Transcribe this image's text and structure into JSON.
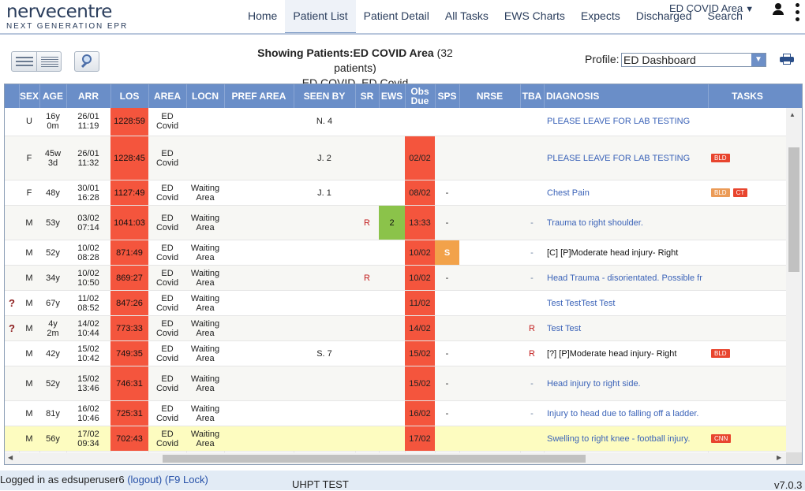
{
  "brand": {
    "name": "nervecentre",
    "tagline": "NEXT GENERATION EPR"
  },
  "nav": {
    "items": [
      "Home",
      "Patient List",
      "Patient Detail",
      "All Tasks",
      "EWS Charts",
      "Expects",
      "Discharged",
      "Search"
    ],
    "active": "Patient List",
    "area_selector": "ED COVID Area"
  },
  "icons": [
    "user-icon",
    "kebab-menu-icon",
    "list-view-icon",
    "compact-view-icon",
    "magnifier-icon",
    "printer-icon",
    "question-icon"
  ],
  "toolbar": {
    "showing_label": "Showing Patients:",
    "showing_area": "ED COVID Area",
    "patient_count": "(32 patients)",
    "subtitle": "ED COVID, ED Covid",
    "profile_label": "Profile:",
    "profile_value": "ED Dashboard"
  },
  "colors": {
    "header": "#6a8ec8",
    "los": "#f4553d",
    "obs_due": "#f4553d",
    "ews_green": "#8bc34a",
    "sps_orange": "#f2a24a",
    "highlight_row": "#fdfcc0",
    "badge_bld": "#e8452e",
    "badge_ct": "#e8452e",
    "badge_bld_light": "#eb9b57"
  },
  "grid": {
    "columns": [
      "SEX",
      "AGE",
      "ARR",
      "LOS",
      "AREA",
      "LOCN",
      "PREF AREA",
      "SEEN BY",
      "SR",
      "EWS",
      "Obs Due",
      "SPS",
      "NRSE",
      "TBA",
      "DIAGNOSIS",
      "TASKS"
    ],
    "rows": [
      {
        "flag": "",
        "sex": "U",
        "age": "16y\n0m",
        "arr": "26/01\n11:19",
        "los": "1228:59",
        "area": "ED\nCovid",
        "locn": "",
        "seen": "N. 4",
        "sr": "",
        "ews": "",
        "obs": "",
        "sps": "",
        "tba": "",
        "diag": "PLEASE LEAVE FOR LAB TESTING",
        "diag_style": "link",
        "tasks": []
      },
      {
        "flag": "",
        "sex": "F",
        "age": "45w\n3d",
        "arr": "26/01\n11:32",
        "los": "1228:45",
        "area": "ED\nCovid",
        "locn": "",
        "seen": "J. 2",
        "sr": "",
        "ews": "",
        "obs": "02/02",
        "sps": "",
        "tba": "",
        "diag": "PLEASE LEAVE FOR LAB TESTING",
        "diag_style": "link",
        "tasks": [
          {
            "label": "BLD",
            "tone": "red"
          }
        ]
      },
      {
        "flag": "",
        "sex": "F",
        "age": "48y",
        "arr": "30/01\n16:28",
        "los": "1127:49",
        "area": "ED\nCovid",
        "locn": "Waiting\nArea",
        "seen": "J. 1",
        "sr": "",
        "ews": "",
        "obs": "08/02",
        "sps": "-",
        "tba": "",
        "diag": "Chest Pain",
        "diag_style": "link",
        "tasks": [
          {
            "label": "BLD",
            "tone": "light"
          },
          {
            "label": "CT",
            "tone": "red"
          }
        ]
      },
      {
        "flag": "",
        "sex": "M",
        "age": "53y",
        "arr": "03/02\n07:14",
        "los": "1041:03",
        "area": "ED\nCovid",
        "locn": "Waiting\nArea",
        "seen": "",
        "sr": "R",
        "ews": "2",
        "obs": "13:33",
        "sps": "-",
        "tba": "-",
        "diag": "Trauma to right shoulder.",
        "diag_style": "link",
        "tasks": []
      },
      {
        "flag": "",
        "sex": "M",
        "age": "52y",
        "arr": "10/02\n08:28",
        "los": "871:49",
        "area": "ED\nCovid",
        "locn": "Waiting\nArea",
        "seen": "",
        "sr": "",
        "ews": "",
        "obs": "10/02",
        "sps": "S",
        "tba": "-",
        "diag": "[C] [P]Moderate head injury- Right",
        "diag_style": "plain",
        "tasks": []
      },
      {
        "flag": "",
        "sex": "M",
        "age": "34y",
        "arr": "10/02\n10:50",
        "los": "869:27",
        "area": "ED\nCovid",
        "locn": "Waiting\nArea",
        "seen": "",
        "sr": "R",
        "ews": "",
        "obs": "10/02",
        "sps": "-",
        "tba": "-",
        "diag": "Head Trauma - disorientated. Possible fr",
        "diag_style": "link",
        "tasks": []
      },
      {
        "flag": "?",
        "sex": "M",
        "age": "67y",
        "arr": "11/02\n08:52",
        "los": "847:26",
        "area": "ED\nCovid",
        "locn": "Waiting\nArea",
        "seen": "",
        "sr": "",
        "ews": "",
        "obs": "11/02",
        "sps": "",
        "tba": "",
        "diag": "Test TestTest Test",
        "diag_style": "link",
        "tasks": []
      },
      {
        "flag": "?",
        "sex": "M",
        "age": "4y\n2m",
        "arr": "14/02\n10:44",
        "los": "773:33",
        "area": "ED\nCovid",
        "locn": "Waiting\nArea",
        "seen": "",
        "sr": "",
        "ews": "",
        "obs": "14/02",
        "sps": "",
        "tba": "R",
        "diag": "Test Test",
        "diag_style": "link",
        "tasks": []
      },
      {
        "flag": "",
        "sex": "M",
        "age": "42y",
        "arr": "15/02\n10:42",
        "los": "749:35",
        "area": "ED\nCovid",
        "locn": "Waiting\nArea",
        "seen": "S. 7",
        "sr": "",
        "ews": "",
        "obs": "15/02",
        "sps": "-",
        "tba": "R",
        "diag": "[?] [P]Moderate head injury- Right",
        "diag_style": "plain",
        "tasks": [
          {
            "label": "BLD",
            "tone": "red"
          }
        ]
      },
      {
        "flag": "",
        "sex": "M",
        "age": "52y",
        "arr": "15/02\n13:46",
        "los": "746:31",
        "area": "ED\nCovid",
        "locn": "Waiting\nArea",
        "seen": "",
        "sr": "",
        "ews": "",
        "obs": "15/02",
        "sps": "-",
        "tba": "-",
        "diag": "Head injury to right side.",
        "diag_style": "link",
        "tasks": []
      },
      {
        "flag": "",
        "sex": "M",
        "age": "81y",
        "arr": "16/02\n10:46",
        "los": "725:31",
        "area": "ED\nCovid",
        "locn": "Waiting\nArea",
        "seen": "",
        "sr": "",
        "ews": "",
        "obs": "16/02",
        "sps": "-",
        "tba": "-",
        "diag": "Injury to head due to falling off a ladder.",
        "diag_style": "link",
        "tasks": []
      },
      {
        "flag": "",
        "sex": "M",
        "age": "56y",
        "arr": "17/02\n09:34",
        "los": "702:43",
        "area": "ED\nCovid",
        "locn": "Waiting\nArea",
        "seen": "",
        "sr": "",
        "ews": "",
        "obs": "17/02",
        "sps": "",
        "tba": "",
        "diag": "Swelling to right knee - football injury.",
        "diag_style": "link",
        "highlight": true,
        "tasks": [
          {
            "label": "CNN",
            "tone": "red"
          }
        ]
      }
    ]
  },
  "footer": {
    "logged_in": "Logged in as edsuperuser6",
    "logout": "(logout)",
    "lock": "(F9 Lock)",
    "environment": "UHPT TEST",
    "version": "v7.0.3"
  }
}
